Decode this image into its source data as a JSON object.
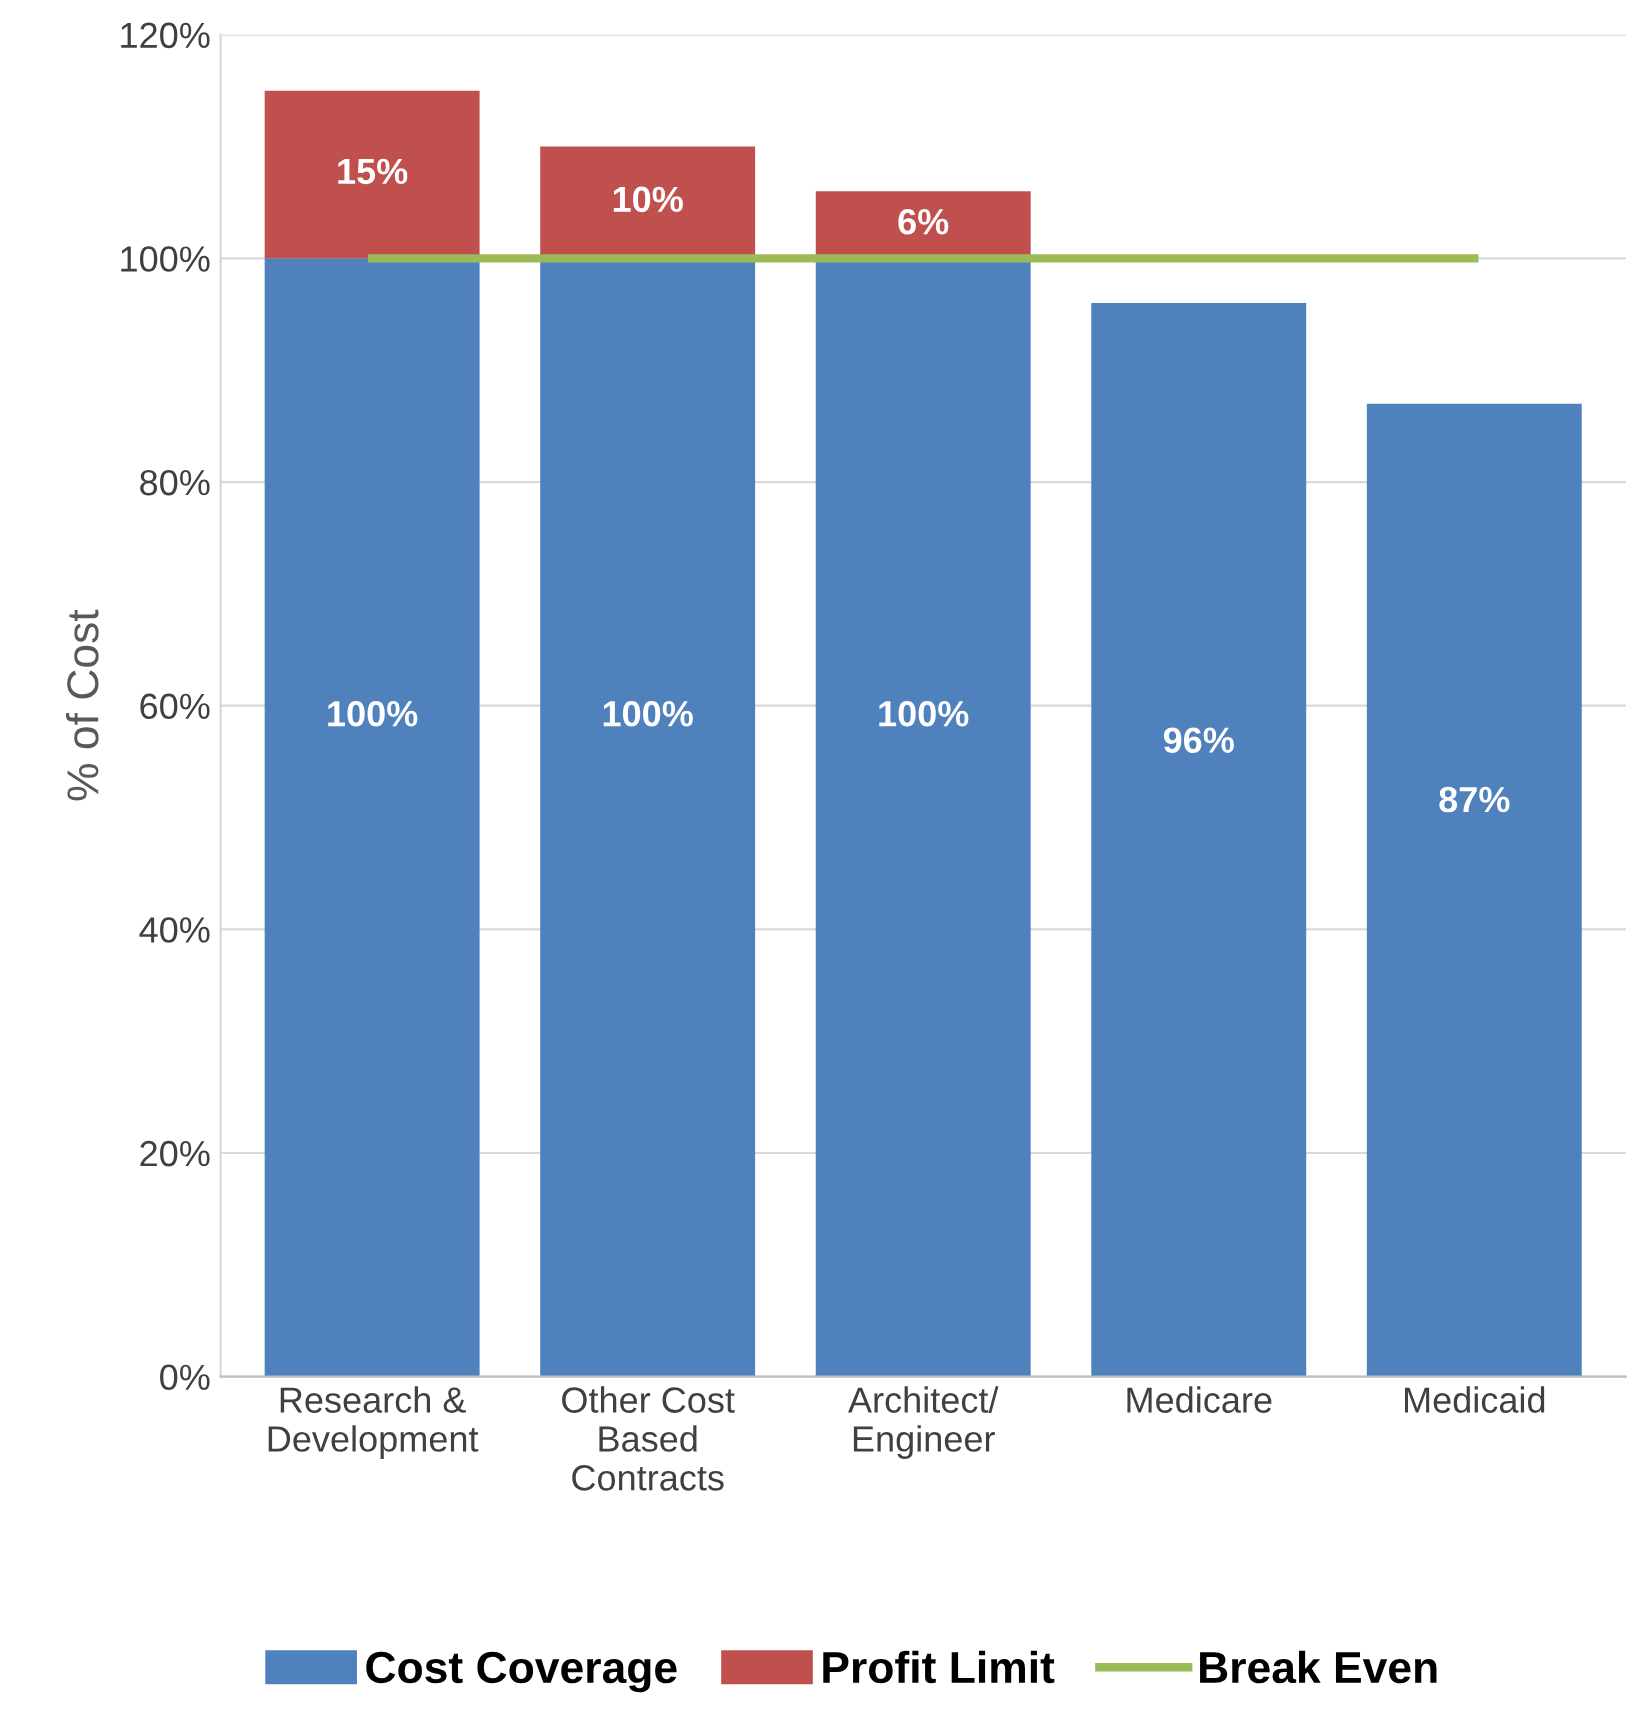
{
  "chart_data": {
    "type": "bar",
    "stacked": true,
    "ylabel": "% of Cost",
    "categories": [
      "Research &\nDevelopment",
      "Other Cost\nBased\nContracts",
      "Architect/\nEngineer",
      "Medicare",
      "Medicaid"
    ],
    "series": [
      {
        "name": "Cost Coverage",
        "color": "#4f81bd",
        "values": [
          100,
          100,
          100,
          96,
          87
        ],
        "value_labels": [
          "100%",
          "100%",
          "100%",
          "96%",
          "87%"
        ]
      },
      {
        "name": "Profit Limit",
        "color": "#c0504d",
        "values": [
          15,
          10,
          6,
          null,
          null
        ],
        "value_labels": [
          "15%",
          "10%",
          "6%",
          null,
          null
        ]
      },
      {
        "name": "Break Even",
        "type": "line",
        "color": "#9bbb59",
        "values": [
          100,
          100,
          100,
          100,
          100
        ]
      }
    ],
    "ylim": [
      0,
      120
    ],
    "yticks": [
      {
        "value": 0,
        "label": "0%"
      },
      {
        "value": 20,
        "label": "20%"
      },
      {
        "value": 40,
        "label": "40%"
      },
      {
        "value": 60,
        "label": "60%"
      },
      {
        "value": 80,
        "label": "80%"
      },
      {
        "value": 100,
        "label": "100%"
      },
      {
        "value": 120,
        "label": "120%"
      }
    ],
    "grid": "y",
    "legend": "bottom",
    "marker": "none",
    "line_style": "solid"
  }
}
